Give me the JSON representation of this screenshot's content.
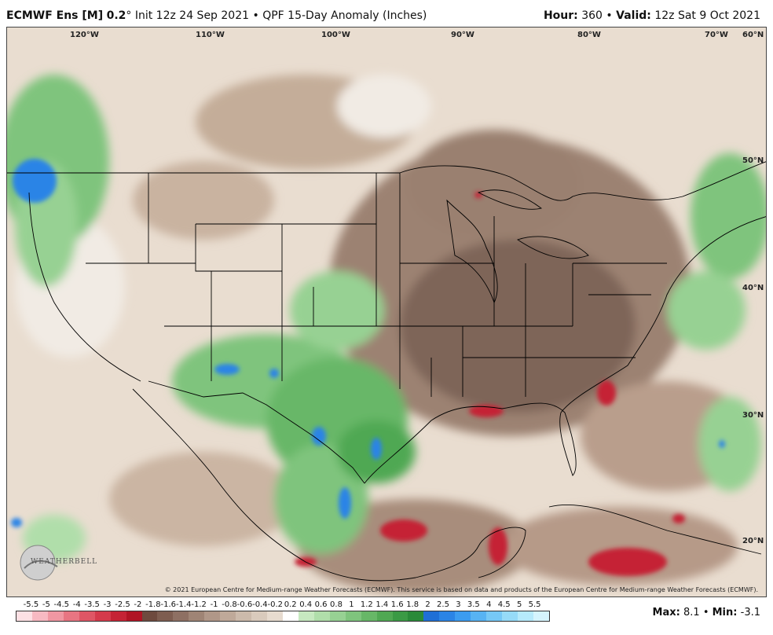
{
  "header": {
    "model": "ECMWF Ens [M]",
    "resolution": "0.2",
    "degree": "°",
    "init": "Init 12z 24 Sep 2021",
    "bullet": "•",
    "product": "QPF 15-Day Anomaly (Inches)",
    "hour_label": "Hour:",
    "hour_value": "360",
    "valid_label": "Valid:",
    "valid_value": "12z Sat 9 Oct 2021"
  },
  "map": {
    "longitudes": [
      "120°W",
      "110°W",
      "100°W",
      "90°W",
      "80°W",
      "70°W",
      "60°N"
    ],
    "latitudes": [
      "50°N",
      "40°N",
      "30°N",
      "20°N"
    ],
    "copyright": "© 2021 European Centre for Medium-range Weather Forecasts (ECMWF). This service is based on data and products of the European Centre for Medium-range Weather Forecasts (ECMWF).",
    "logo_text": "WEATHERBELL"
  },
  "legend": {
    "ticks": [
      "-5.5",
      "-5",
      "-4.5",
      "-4",
      "-3.5",
      "-3",
      "-2.5",
      "-2",
      "-1.8",
      "-1.6",
      "-1.4",
      "-1.2",
      "-1",
      "-0.8",
      "-0.6",
      "-0.4",
      "-0.2",
      "0.2",
      "0.4",
      "0.6",
      "0.8",
      "1",
      "1.2",
      "1.4",
      "1.6",
      "1.8",
      "2",
      "2.5",
      "3",
      "3.5",
      "4",
      "4.5",
      "5",
      "5.5"
    ],
    "colors": [
      "#fde0e4",
      "#f7b9c2",
      "#f097a2",
      "#e87582",
      "#df5665",
      "#d43a4b",
      "#c52335",
      "#b01424",
      "#6e4a3e",
      "#7e5d50",
      "#8e7063",
      "#9f8475",
      "#b09788",
      "#bfa999",
      "#ccbaab",
      "#d9cabc",
      "#e7dbcf",
      "#ffffff",
      "#c7e9c0",
      "#b0deaa",
      "#97d193",
      "#7fc47d",
      "#67b767",
      "#50a853",
      "#3b9a45",
      "#2a8a39",
      "#1f6fd6",
      "#2b84e6",
      "#3c9cf0",
      "#57b3f3",
      "#76c8f6",
      "#96dbf8",
      "#b6eafb",
      "#d5f4fd"
    ],
    "max_label": "Max:",
    "max_value": "8.1",
    "min_label": "Min:",
    "min_value": "-3.1"
  }
}
